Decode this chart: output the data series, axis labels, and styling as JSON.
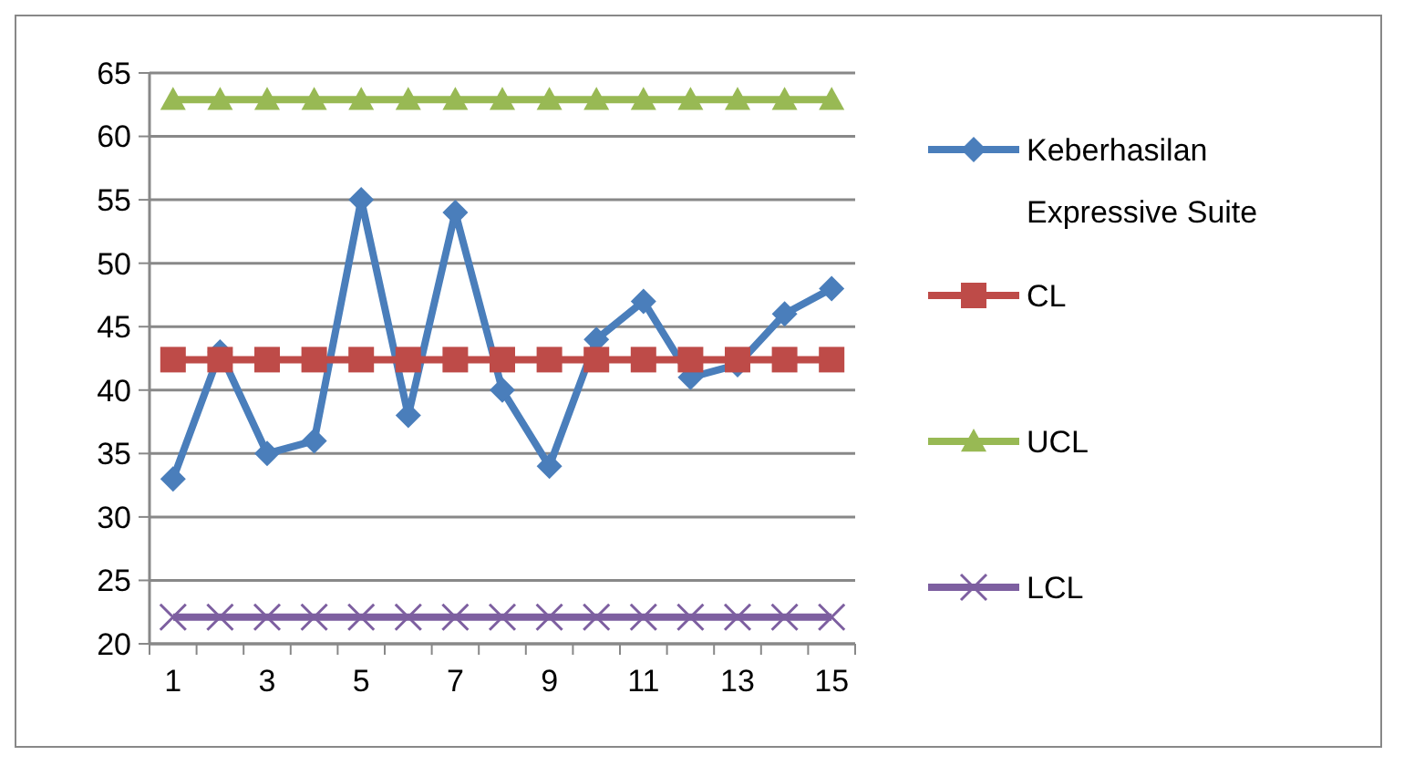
{
  "chart_data": {
    "type": "line",
    "x": [
      1,
      2,
      3,
      4,
      5,
      6,
      7,
      8,
      9,
      10,
      11,
      12,
      13,
      14,
      15
    ],
    "xlim": [
      0.5,
      15.5
    ],
    "xticks": [
      1,
      3,
      5,
      7,
      9,
      11,
      13,
      15,
      {
        "value": 0.5,
        "label": null
      },
      {
        "value": 1.5,
        "label": null
      },
      {
        "value": 2.5,
        "label": null
      },
      {
        "value": 3.5,
        "label": null
      },
      {
        "value": 4.5,
        "label": null
      },
      {
        "value": 5.5,
        "label": null
      },
      {
        "value": 6.5,
        "label": null
      },
      {
        "value": 7.5,
        "label": null
      },
      {
        "value": 8.5,
        "label": null
      },
      {
        "value": 9.5,
        "label": null
      },
      {
        "value": 10.5,
        "label": null
      },
      {
        "value": 11.5,
        "label": null
      },
      {
        "value": 12.5,
        "label": null
      },
      {
        "value": 13.5,
        "label": null
      },
      {
        "value": 14.5,
        "label": null
      },
      {
        "value": 15.5,
        "label": null
      }
    ],
    "series": [
      {
        "name": "Keberhasilan Expressive Suite",
        "color": "#4a7ebb",
        "marker": "diamond",
        "values": [
          33,
          43,
          35,
          36,
          55,
          38,
          54,
          40,
          34,
          44,
          47,
          41,
          42,
          46,
          48
        ]
      },
      {
        "name": "CL",
        "color": "#be4b48",
        "marker": "square",
        "values": [
          42.4,
          42.4,
          42.4,
          42.4,
          42.4,
          42.4,
          42.4,
          42.4,
          42.4,
          42.4,
          42.4,
          42.4,
          42.4,
          42.4,
          42.4
        ]
      },
      {
        "name": "UCL",
        "color": "#98b954",
        "marker": "triangle",
        "values": [
          62.9,
          62.9,
          62.9,
          62.9,
          62.9,
          62.9,
          62.9,
          62.9,
          62.9,
          62.9,
          62.9,
          62.9,
          62.9,
          62.9,
          62.9
        ]
      },
      {
        "name": "LCL",
        "color": "#7d5fa0",
        "marker": "cross",
        "values": [
          22.1,
          22.1,
          22.1,
          22.1,
          22.1,
          22.1,
          22.1,
          22.1,
          22.1,
          22.1,
          22.1,
          22.1,
          22.1,
          22.1,
          22.1
        ]
      }
    ],
    "ylim": [
      20,
      65
    ],
    "yticks": [
      20,
      25,
      30,
      35,
      40,
      45,
      50,
      55,
      60,
      65
    ],
    "grid": "y",
    "legend": "right"
  }
}
